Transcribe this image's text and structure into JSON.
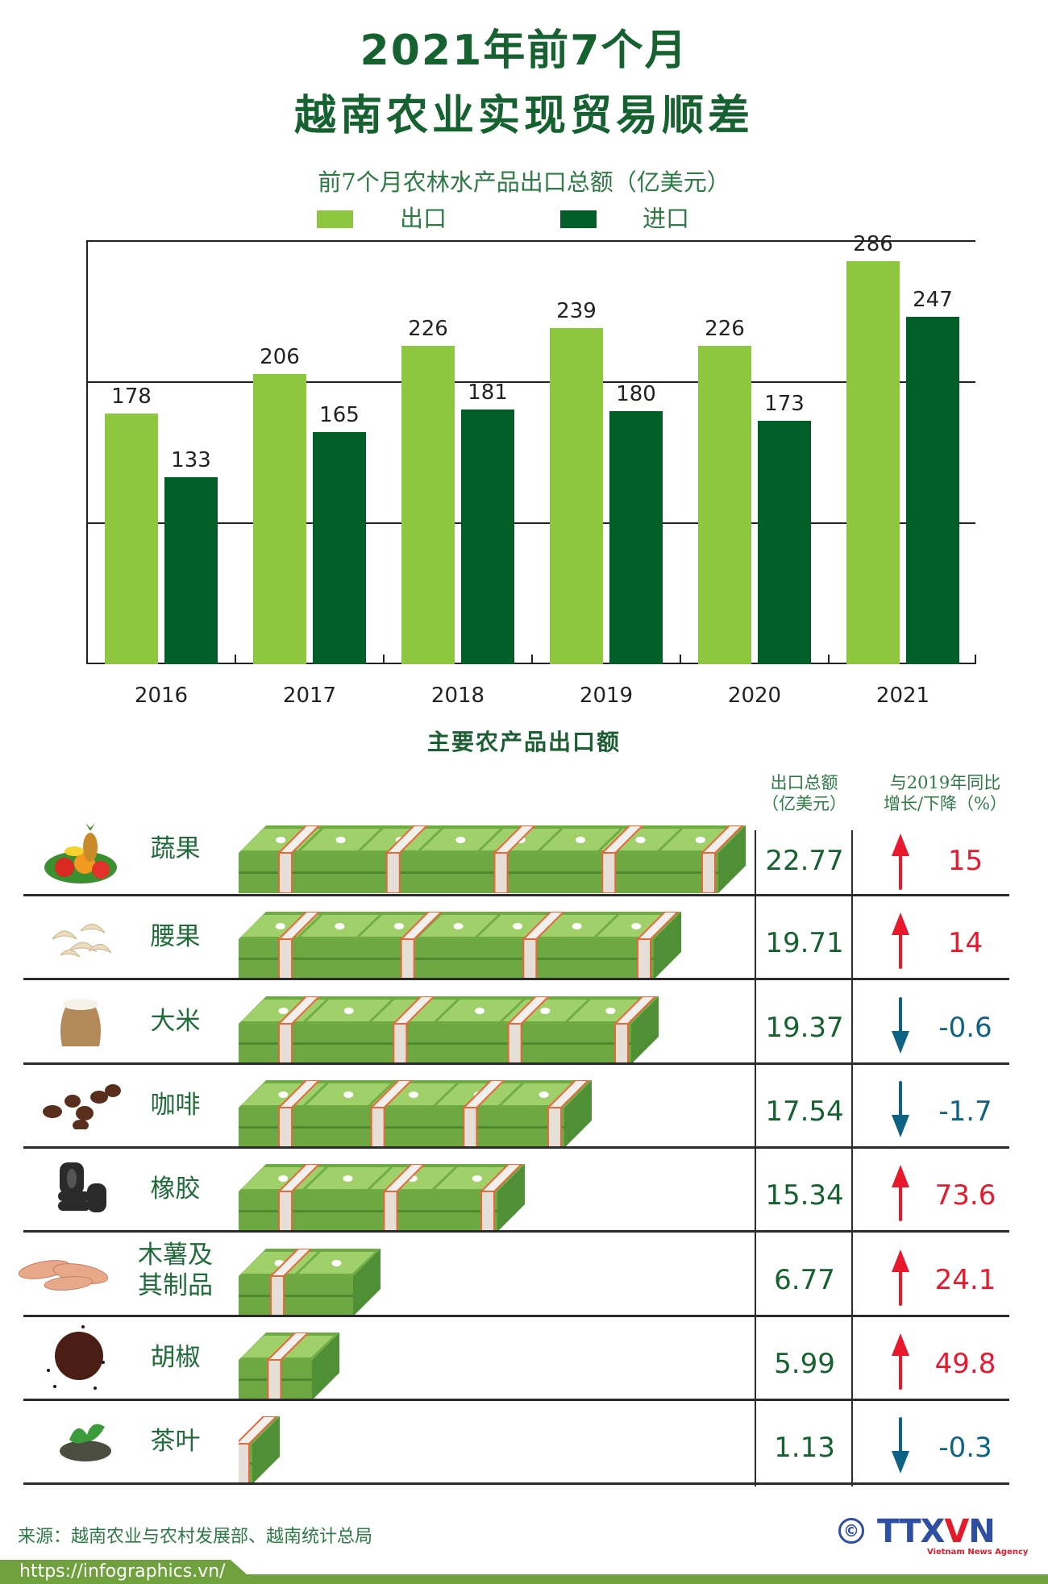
{
  "header": {
    "title_line1": "2021年前7个月",
    "title_line2": "越南农业实现贸易顺差",
    "subtitle": "前7个月农林水产品出口总额（亿美元）"
  },
  "legend": [
    {
      "label": "出口",
      "color": "#8dc63f"
    },
    {
      "label": "进口",
      "color": "#005e26"
    }
  ],
  "chart_data": {
    "type": "bar",
    "title": "前7个月农林水产品出口总额（亿美元）",
    "xlabel": "",
    "ylabel": "亿美元",
    "ylim": [
      0,
      300
    ],
    "grid": true,
    "legend_position": "top",
    "categories": [
      "2016",
      "2017",
      "2018",
      "2019",
      "2020",
      "2021"
    ],
    "series": [
      {
        "name": "出口",
        "color": "#8dc63f",
        "values": [
          178,
          206,
          226,
          239,
          226,
          286
        ]
      },
      {
        "name": "进口",
        "color": "#005e26",
        "values": [
          133,
          165,
          181,
          180,
          173,
          247
        ]
      }
    ]
  },
  "products": {
    "section_title": "主要农产品出口额",
    "col_value_head": [
      "出口总额",
      "（亿美元）"
    ],
    "col_change_head": [
      "与2019年同比",
      "增长/下降（%）"
    ],
    "up_color": "#e8192c",
    "down_color": "#0e6384",
    "value_color": "#15612f",
    "rows": [
      {
        "name": "蔬果",
        "icon": "fruits-vegetables-image",
        "value": "22.77",
        "change": "15",
        "direction": "up"
      },
      {
        "name": "腰果",
        "icon": "cashew-image",
        "value": "19.71",
        "change": "14",
        "direction": "up"
      },
      {
        "name": "大米",
        "icon": "rice-sack-image",
        "value": "19.37",
        "change": "-0.6",
        "direction": "down"
      },
      {
        "name": "咖啡",
        "icon": "coffee-beans-image",
        "value": "17.54",
        "change": "-1.7",
        "direction": "down"
      },
      {
        "name": "橡胶",
        "icon": "tires-image",
        "value": "15.34",
        "change": "73.6",
        "direction": "up"
      },
      {
        "name": "木薯及其制品",
        "name_lines": [
          "木薯及",
          "其制品"
        ],
        "icon": "cassava-image",
        "value": "6.77",
        "change": "24.1",
        "direction": "up"
      },
      {
        "name": "胡椒",
        "icon": "pepper-image",
        "value": "5.99",
        "change": "49.8",
        "direction": "up"
      },
      {
        "name": "茶叶",
        "icon": "tea-image",
        "value": "1.13",
        "change": "-0.3",
        "direction": "down"
      }
    ]
  },
  "footer": {
    "source": "来源：越南农业与农村发展部、越南统计总局",
    "url": "https://infographics.vn/",
    "copyright": "©",
    "logo": "TTXVN",
    "logo_tagline": "Vietnam News Agency",
    "band_color": "#6fa23e"
  }
}
